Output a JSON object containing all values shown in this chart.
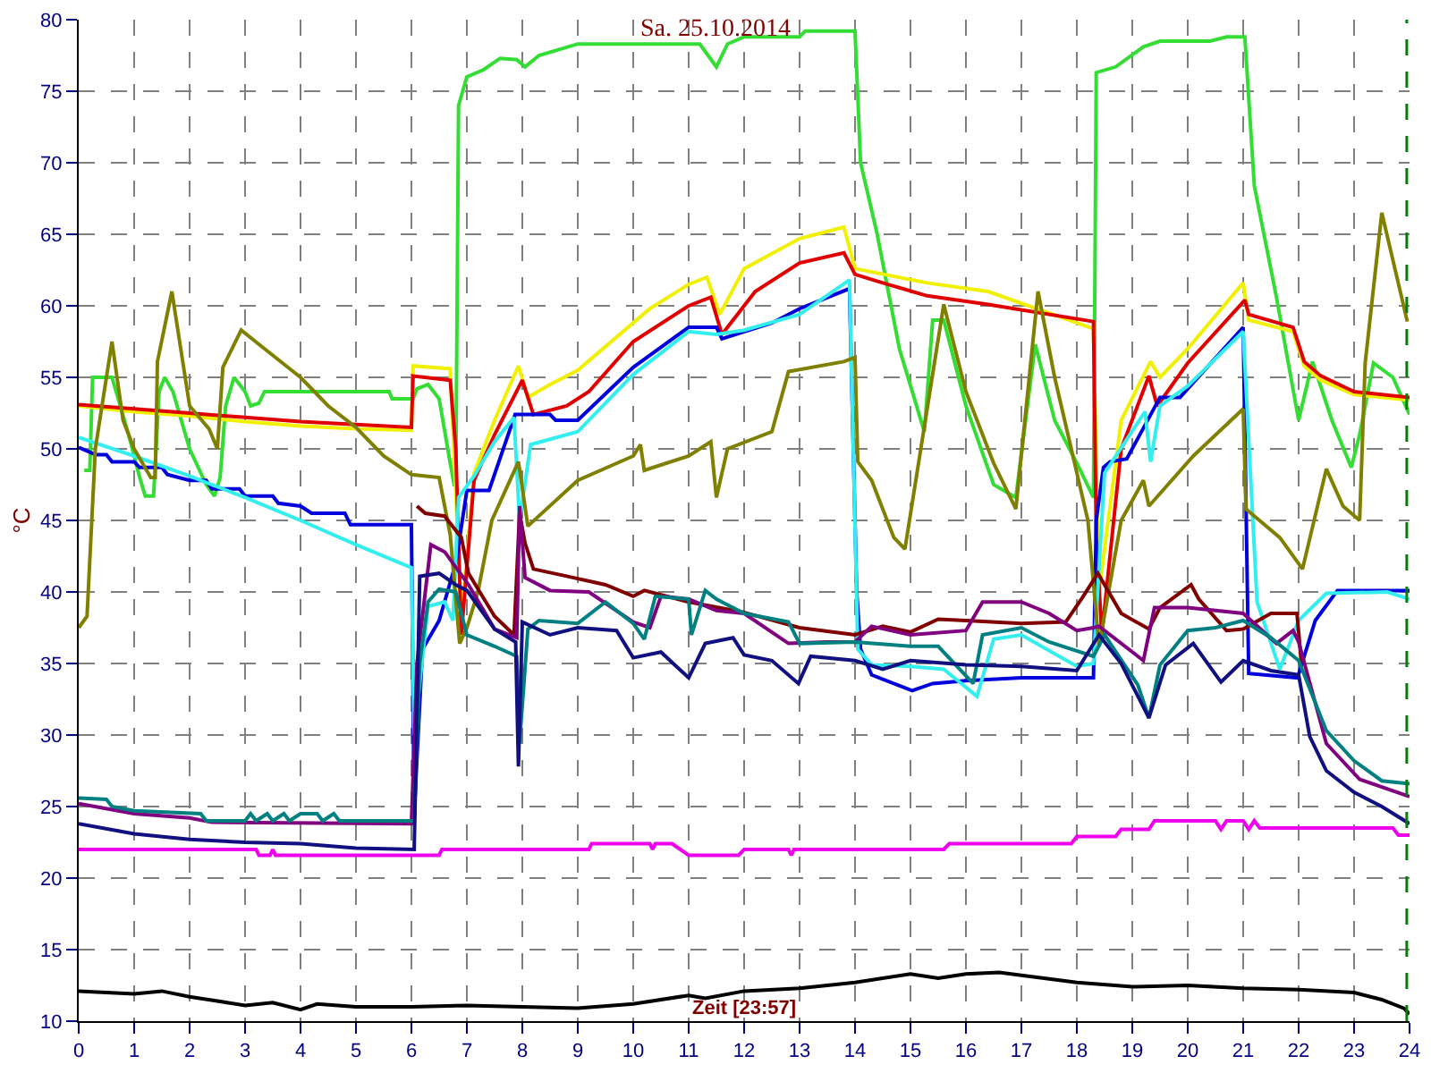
{
  "chart_data": {
    "type": "line",
    "title": "Sa. 25.10.2014",
    "xlabel": "Zeit [23:57]",
    "ylabel": "°C",
    "xlim": [
      0,
      24
    ],
    "xticks": [
      0,
      1,
      2,
      3,
      4,
      5,
      6,
      7,
      8,
      9,
      10,
      11,
      12,
      13,
      14,
      15,
      16,
      17,
      18,
      19,
      20,
      21,
      22,
      23,
      24
    ],
    "ylim": [
      10,
      80
    ],
    "yticks": [
      10,
      15,
      20,
      25,
      30,
      35,
      40,
      45,
      50,
      55,
      60,
      65,
      70,
      75,
      80
    ],
    "grid": true,
    "line_style": "solid",
    "marker": "none",
    "ref_lines": [
      {
        "axis": "x",
        "value": 23.95,
        "color": "#008000",
        "line_style": "dashed"
      }
    ],
    "series": [
      {
        "color": "#33dd33",
        "x": [
          0.1,
          0.2,
          0.25,
          0.6,
          0.9,
          1.1,
          1.2,
          1.35,
          1.45,
          1.55,
          1.7,
          2.0,
          2.3,
          2.45,
          2.55,
          2.65,
          2.8,
          3.0,
          3.1,
          3.25,
          3.35,
          5.6,
          5.65,
          6.03,
          6.1,
          6.3,
          6.5,
          6.7,
          6.77,
          6.8,
          6.85,
          7.0,
          7.3,
          7.6,
          7.9,
          8.05,
          8.3,
          9.0,
          11.2,
          11.5,
          11.7,
          12.0,
          13.0,
          13.1,
          14.0,
          14.1,
          14.4,
          14.8,
          15.25,
          15.4,
          15.6,
          16.0,
          16.5,
          16.9,
          17.25,
          17.6,
          18.0,
          18.3,
          18.35,
          18.7,
          19.2,
          19.5,
          20.4,
          20.7,
          21.03,
          21.2,
          21.6,
          22.0,
          22.25,
          22.6,
          22.95,
          23.1,
          23.35,
          23.7,
          24
        ],
        "values": [
          48.5,
          48.5,
          55,
          55,
          51,
          48,
          46.7,
          46.7,
          54,
          55,
          54,
          50,
          47.5,
          46.7,
          48,
          53,
          55,
          54,
          53,
          53.2,
          54,
          54,
          53.5,
          53.5,
          54.2,
          54.5,
          53.5,
          49,
          47.5,
          47.5,
          74,
          76,
          76.5,
          77.3,
          77.2,
          76.7,
          77.5,
          78.3,
          78.3,
          76.7,
          78.3,
          78.8,
          78.8,
          79.2,
          79.2,
          70,
          65,
          57,
          51.2,
          59,
          59,
          53,
          47.5,
          46.6,
          57.3,
          52,
          49,
          46.6,
          76.3,
          76.7,
          78.1,
          78.5,
          78.5,
          78.8,
          78.8,
          68.4,
          60.6,
          52,
          56.1,
          52,
          48.7,
          51,
          56,
          55,
          52.4
        ]
      },
      {
        "color": "#f0f000",
        "x": [
          0,
          1,
          2,
          3,
          4,
          5,
          6.0,
          6.03,
          6.7,
          6.8,
          6.9,
          7.13,
          7.5,
          7.93,
          8.1,
          8.5,
          9.0,
          10.3,
          11.0,
          11.33,
          11.56,
          12.0,
          13.0,
          13.8,
          14.0,
          15.3,
          16.4,
          18.3,
          18.4,
          18.8,
          19.33,
          19.5,
          20.0,
          21.0,
          21.1,
          21.9,
          22.1,
          22.4,
          23.0,
          24
        ],
        "values": [
          53,
          52.6,
          52.3,
          51.9,
          51.6,
          51.4,
          51.3,
          55.8,
          55.6,
          47,
          38,
          48.3,
          52,
          55.8,
          53.6,
          54.5,
          55.5,
          59.8,
          61.5,
          62,
          59.4,
          62.6,
          64.7,
          65.5,
          62.6,
          61.6,
          61,
          58.4,
          40,
          52,
          56.1,
          55,
          57,
          61.6,
          59,
          58.2,
          55.8,
          54.8,
          53.8,
          53.4
        ]
      },
      {
        "color": "#e00000",
        "x": [
          0,
          1,
          2,
          3,
          4,
          5,
          6.0,
          6.03,
          6.7,
          6.8,
          6.9,
          7.13,
          7.5,
          8.0,
          8.2,
          8.8,
          9.2,
          10.0,
          11.0,
          11.4,
          11.6,
          12.2,
          13.0,
          13.8,
          14.0,
          14.5,
          15.3,
          16.4,
          18.3,
          18.35,
          18.45,
          18.8,
          19.3,
          19.45,
          20.0,
          21.03,
          21.1,
          21.9,
          22.1,
          22.4,
          23.0,
          24
        ],
        "values": [
          53.1,
          52.8,
          52.5,
          52.2,
          51.9,
          51.7,
          51.5,
          55.1,
          54.8,
          50,
          37,
          47.8,
          51,
          54.8,
          52.4,
          53,
          54,
          57.5,
          60,
          60.6,
          58,
          61,
          63,
          63.7,
          62.2,
          61.6,
          60.7,
          60.1,
          58.9,
          44,
          37,
          50,
          55.1,
          53,
          56,
          60.4,
          59.4,
          58.5,
          56.1,
          55.1,
          54.0,
          53.6
        ]
      },
      {
        "color": "#0000dd",
        "x": [
          0,
          0.3,
          0.5,
          0.6,
          1,
          1.1,
          1.5,
          1.6,
          2,
          2.3,
          2.4,
          2.9,
          3.0,
          3.5,
          3.6,
          4.0,
          4.2,
          4.8,
          4.9,
          6.0,
          6.05,
          6.2,
          6.5,
          6.8,
          7.0,
          7.4,
          7.87,
          8.5,
          8.6,
          9.0,
          10.0,
          11.0,
          11.5,
          11.6,
          12.5,
          13.0,
          13.9,
          14.03,
          14.1,
          14.3,
          15.03,
          15.4,
          16,
          17,
          18.3,
          18.35,
          18.48,
          18.6,
          18.9,
          19.5,
          19.86,
          21.0,
          21.1,
          21.98,
          22.3,
          22.7,
          24
        ],
        "values": [
          50.1,
          49.6,
          49.6,
          49.1,
          49.1,
          48.7,
          48.7,
          48.2,
          47.8,
          47.8,
          47.2,
          47.2,
          46.7,
          46.7,
          46.2,
          46.0,
          45.5,
          45.5,
          44.7,
          44.7,
          24.5,
          36,
          38,
          42,
          47.1,
          47.1,
          52.4,
          52.4,
          52.0,
          52.0,
          55.7,
          58.5,
          58.5,
          57.7,
          58.8,
          59.8,
          61.2,
          40,
          36,
          34.2,
          33.1,
          33.6,
          33.8,
          34.0,
          34.0,
          45,
          48.7,
          49.1,
          49.3,
          53.6,
          53.6,
          58.5,
          34.3,
          34.0,
          38,
          40.1,
          40.1
        ]
      },
      {
        "color": "#33eeee",
        "x": [
          0,
          1,
          2,
          3,
          4,
          5,
          6.0,
          6.05,
          6.3,
          6.6,
          6.75,
          6.85,
          7.13,
          7.5,
          7.85,
          7.95,
          8.15,
          9.0,
          10.0,
          11.0,
          11.5,
          12.0,
          13.0,
          13.9,
          14.05,
          14.3,
          15.0,
          15.6,
          16.2,
          16.5,
          17.0,
          18.0,
          18.3,
          18.5,
          19.23,
          19.33,
          19.5,
          20.0,
          21.0,
          21.25,
          21.66,
          22.0,
          22.5,
          23.6,
          24
        ],
        "values": [
          50.8,
          49.5,
          48.1,
          46.6,
          45,
          43.3,
          41.7,
          30,
          39,
          39.3,
          38,
          46.6,
          48.1,
          50.5,
          52.2,
          45,
          50.3,
          51.2,
          55.2,
          58.2,
          58,
          58.3,
          59.4,
          61.8,
          36,
          34.9,
          34.8,
          34.6,
          32.7,
          36.7,
          37,
          34.8,
          35,
          48.3,
          52.6,
          49.1,
          53,
          54.4,
          58.2,
          39.3,
          34.6,
          38,
          39.9,
          40,
          39.5
        ]
      },
      {
        "color": "#808000",
        "x": [
          0,
          0.15,
          0.3,
          0.6,
          0.8,
          1.0,
          1.3,
          1.38,
          1.42,
          1.68,
          2.0,
          2.35,
          2.5,
          2.6,
          2.93,
          3.35,
          4,
          4.5,
          5,
          5.5,
          6,
          6.5,
          6.7,
          6.87,
          7.0,
          7.2,
          7.45,
          7.93,
          8.1,
          9.0,
          10.0,
          10.13,
          10.2,
          11.0,
          11.4,
          11.5,
          11.7,
          12.5,
          12.8,
          13.8,
          14.0,
          14.05,
          14.3,
          14.7,
          14.9,
          15.6,
          16.0,
          16.5,
          16.9,
          17.3,
          17.6,
          18.2,
          18.4,
          18.8,
          19.2,
          19.3,
          20.1,
          21.0,
          21.05,
          21.66,
          22.07,
          22.5,
          22.8,
          23.1,
          23.2,
          23.5,
          23.96
        ],
        "values": [
          37.5,
          38.3,
          50,
          57.5,
          52,
          50,
          48,
          48,
          56.1,
          61,
          53,
          51.4,
          50,
          55.7,
          58.3,
          57,
          55,
          53,
          51.5,
          49.5,
          48.2,
          48,
          44,
          36.4,
          37.5,
          40,
          45,
          49.1,
          44.6,
          47.8,
          49.5,
          50.3,
          48.5,
          49.5,
          50.5,
          46.6,
          50,
          51.2,
          55.4,
          56.1,
          56.4,
          49.1,
          47.8,
          43.8,
          43,
          60.1,
          54,
          49,
          45.8,
          61,
          55,
          45,
          36.2,
          45,
          47.8,
          46,
          49.5,
          52.8,
          45.8,
          43.8,
          41.6,
          48.6,
          46,
          45,
          56,
          66.5,
          58.9
        ]
      },
      {
        "color": "#800000",
        "x": [
          6.1,
          6.25,
          6.6,
          6.9,
          7.03,
          7.5,
          7.85,
          7.95,
          8.05,
          8.2,
          8.8,
          9.5,
          10.0,
          10.2,
          11.0,
          11.97,
          13.0,
          14.0,
          14.5,
          15.0,
          15.5,
          16.0,
          17.0,
          17.8,
          18.1,
          18.38,
          18.8,
          19.3,
          19.5,
          20.06,
          20.2,
          20.7,
          21.0,
          21.5,
          21.97,
          22.05
        ],
        "values": [
          46,
          45.5,
          45.3,
          43.8,
          41.3,
          38.3,
          37,
          45.5,
          43.4,
          41.6,
          41.1,
          40.5,
          39.7,
          40.1,
          39.3,
          38.6,
          37.5,
          37.0,
          37.6,
          37.2,
          38.1,
          38.0,
          37.8,
          37.9,
          39.6,
          41.3,
          38.5,
          37.4,
          38.9,
          40.5,
          39.5,
          37.3,
          37.4,
          38.5,
          38.5,
          35
        ]
      },
      {
        "color": "#800080",
        "x": [
          0,
          1,
          2,
          2.4,
          6.0,
          6.1,
          6.35,
          6.6,
          7.03,
          7.5,
          7.9,
          7.95,
          8.05,
          8.5,
          9.2,
          10.0,
          10.3,
          10.5,
          11.0,
          11.5,
          12.0,
          12.8,
          13.5,
          14.0,
          14.3,
          15.0,
          16.0,
          16.3,
          17.0,
          17.5,
          18.0,
          18.3,
          18.4,
          19.2,
          19.4,
          20.0,
          21.0,
          21.6,
          21.9,
          22.0,
          22.5,
          23.1,
          24
        ],
        "values": [
          25.2,
          24.5,
          24.2,
          23.9,
          23.8,
          35,
          43.3,
          42.8,
          40.5,
          37.4,
          36.8,
          46,
          41,
          40.1,
          40,
          37.9,
          37.5,
          39.7,
          39.5,
          38.7,
          38.5,
          36.4,
          36.5,
          36.5,
          37.6,
          37.0,
          37.3,
          39.3,
          39.3,
          38.5,
          37.3,
          37.5,
          37.6,
          35.2,
          38.9,
          38.9,
          38.5,
          36.4,
          37.3,
          36.5,
          29.4,
          26.9,
          25.7
        ]
      },
      {
        "color": "#008080",
        "x": [
          0,
          0.5,
          0.6,
          1.0,
          2.2,
          2.3,
          3.0,
          3.1,
          3.2,
          3.4,
          3.5,
          3.7,
          3.8,
          4.0,
          4.3,
          4.4,
          4.6,
          4.7,
          6.05,
          6.15,
          6.3,
          6.5,
          6.8,
          6.9,
          7.0,
          7.5,
          7.9,
          7.95,
          8.1,
          8.3,
          9.0,
          9.5,
          10.0,
          10.2,
          10.4,
          11.0,
          11.05,
          11.3,
          11.5,
          12.0,
          12.8,
          13.0,
          14.0,
          15.0,
          15.5,
          16.13,
          16.3,
          17.0,
          17.5,
          18.3,
          18.5,
          19.1,
          19.3,
          19.5,
          20.0,
          20.5,
          21.0,
          21.5,
          22.0,
          22.5,
          23.0,
          23.5,
          24
        ],
        "values": [
          25.6,
          25.5,
          25.0,
          24.7,
          24.5,
          24.0,
          24.0,
          24.5,
          24.0,
          24.5,
          24.0,
          24.5,
          24.0,
          24.5,
          24.5,
          24.0,
          24.5,
          24.0,
          24.0,
          35,
          39.3,
          40.2,
          40.0,
          38.5,
          37.0,
          36.2,
          35.5,
          29.4,
          37.4,
          38.0,
          37.8,
          39.3,
          37.8,
          36.7,
          39.7,
          39.5,
          37.0,
          40.1,
          39.5,
          38.5,
          37.9,
          36.4,
          36.5,
          36.2,
          36.2,
          33.6,
          37.0,
          37.5,
          36.5,
          35.5,
          37.0,
          33.5,
          31.2,
          34.9,
          37.3,
          37.5,
          38.0,
          36.8,
          35.2,
          30.3,
          28.2,
          26.8,
          26.6
        ]
      },
      {
        "color": "#101080",
        "x": [
          0,
          1,
          2,
          3,
          4,
          5,
          6.05,
          6.15,
          6.5,
          6.8,
          7.0,
          7.5,
          7.88,
          7.93,
          8.0,
          8.5,
          9.0,
          9.7,
          10.0,
          10.5,
          11.0,
          11.3,
          11.8,
          12.0,
          12.5,
          12.98,
          13.2,
          14.0,
          14.5,
          15.0,
          16.0,
          17.0,
          18.0,
          18.4,
          18.8,
          19.3,
          19.6,
          20.1,
          20.6,
          21.0,
          21.5,
          22.0,
          22.2,
          22.5,
          23.0,
          23.5,
          24
        ],
        "values": [
          23.8,
          23.1,
          22.7,
          22.5,
          22.4,
          22.1,
          22.0,
          41.1,
          41.3,
          40.5,
          40.1,
          37.4,
          36.5,
          27.8,
          37.9,
          37.0,
          37.5,
          37.3,
          35.4,
          35.8,
          34.0,
          36.4,
          36.8,
          35.6,
          35.2,
          33.6,
          35.5,
          35.2,
          34.6,
          35.2,
          34.9,
          34.8,
          34.5,
          37.0,
          35.0,
          31.2,
          34.9,
          36.4,
          33.7,
          35.2,
          34.5,
          34.2,
          29.9,
          27.5,
          26.0,
          25.0,
          23.8
        ]
      },
      {
        "color": "#ee00ee",
        "x": [
          0,
          3.2,
          3.25,
          3.45,
          3.5,
          3.55,
          6.5,
          6.55,
          9.2,
          9.25,
          10.3,
          10.35,
          10.4,
          10.7,
          11.0,
          11.9,
          12.0,
          12.8,
          12.85,
          12.9,
          15.6,
          15.7,
          17.9,
          18.0,
          18.7,
          18.8,
          19.3,
          19.4,
          20.5,
          20.6,
          20.7,
          21.0,
          21.1,
          21.2,
          21.3,
          23.7,
          23.8,
          24
        ],
        "values": [
          22,
          22,
          21.6,
          21.6,
          22,
          21.6,
          21.6,
          22,
          22,
          22.4,
          22.4,
          22,
          22.4,
          22.4,
          21.6,
          21.6,
          22,
          22,
          21.6,
          22,
          22,
          22.4,
          22.4,
          22.9,
          22.9,
          23.4,
          23.4,
          24,
          24,
          23.4,
          24,
          24,
          23.4,
          24,
          23.5,
          23.5,
          23,
          23
        ]
      },
      {
        "color": "#000000",
        "x": [
          0,
          0.5,
          1,
          1.5,
          2,
          2.5,
          3,
          3.5,
          4,
          4.3,
          5,
          6,
          7,
          8,
          9,
          10,
          11,
          11.3,
          12,
          13,
          14,
          15,
          15.5,
          16,
          16.6,
          17,
          18,
          19,
          20,
          21,
          22,
          23,
          23.5,
          23.9,
          24
        ],
        "values": [
          12.1,
          12.0,
          11.9,
          12.1,
          11.7,
          11.4,
          11.1,
          11.3,
          10.8,
          11.2,
          11.0,
          11.0,
          11.1,
          11.0,
          10.9,
          11.2,
          11.8,
          11.6,
          12.1,
          12.3,
          12.7,
          13.3,
          13.0,
          13.3,
          13.4,
          13.2,
          12.7,
          12.4,
          12.5,
          12.3,
          12.2,
          12.0,
          11.5,
          10.9,
          10.5
        ]
      }
    ]
  }
}
